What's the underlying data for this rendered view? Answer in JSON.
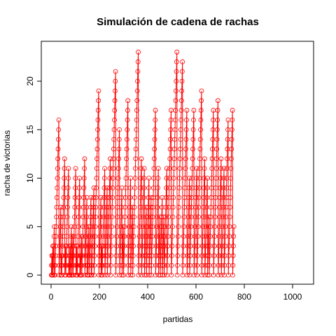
{
  "chart_data": {
    "type": "line",
    "title": "Simulación de cadena de rachas",
    "xlabel": "partidas",
    "ylabel": "racha de victorias",
    "xlim": [
      0,
      1050
    ],
    "ylim": [
      0,
      23
    ],
    "x_ticks": [
      0,
      200,
      400,
      600,
      800,
      1000
    ],
    "y_ticks": [
      0,
      5,
      10,
      15,
      20
    ],
    "grid": false,
    "legend": "none",
    "series_color": "#ff0000",
    "marker": "open-circle",
    "x_start": 1,
    "values": [
      0,
      1,
      2,
      0,
      1,
      2,
      3,
      0,
      1,
      2,
      3,
      4,
      5,
      0,
      1,
      0,
      1,
      2,
      3,
      4,
      5,
      6,
      7,
      8,
      9,
      10,
      11,
      12,
      13,
      14,
      15,
      16,
      0,
      1,
      2,
      3,
      4,
      5,
      6,
      7,
      0,
      1,
      2,
      0,
      1,
      2,
      3,
      4,
      5,
      6,
      7,
      8,
      9,
      10,
      11,
      12,
      0,
      1,
      2,
      3,
      0,
      1,
      2,
      3,
      4,
      5,
      6,
      7,
      8,
      9,
      10,
      11,
      0,
      1,
      0,
      1,
      2,
      3,
      0,
      1,
      2,
      3,
      4,
      5,
      0,
      0,
      1,
      2,
      3,
      4,
      0,
      1,
      2,
      3,
      4,
      5,
      6,
      7,
      8,
      9,
      10,
      11,
      0,
      1,
      2,
      3,
      0,
      0,
      1,
      2,
      3,
      4,
      5,
      6,
      7,
      8,
      9,
      10,
      0,
      1,
      2,
      0,
      1,
      2,
      3,
      4,
      0,
      1,
      2,
      3,
      4,
      5,
      6,
      7,
      8,
      9,
      10,
      11,
      12,
      0,
      1,
      2,
      3,
      4,
      5,
      6,
      7,
      8,
      0,
      1,
      0,
      1,
      2,
      3,
      4,
      5,
      0,
      1,
      2,
      3,
      4,
      5,
      6,
      7,
      8,
      0,
      1,
      0,
      1,
      2,
      3,
      4,
      5,
      6,
      7,
      8,
      9,
      0,
      1,
      2,
      3,
      4,
      5,
      6,
      7,
      8,
      9,
      10,
      11,
      12,
      13,
      14,
      15,
      16,
      17,
      18,
      19,
      0,
      1,
      2,
      3,
      4,
      5,
      6,
      7,
      8,
      0,
      1,
      2,
      3,
      0,
      1,
      2,
      3,
      4,
      5,
      6,
      7,
      8,
      9,
      10,
      11,
      0,
      1,
      2,
      3,
      4,
      5,
      6,
      7,
      8,
      9,
      0,
      1,
      2,
      3,
      4,
      5,
      6,
      7,
      8,
      9,
      10,
      11,
      12,
      0,
      1,
      2,
      3,
      4,
      5,
      6,
      7,
      8,
      9,
      10,
      11,
      12,
      13,
      14,
      15,
      16,
      17,
      18,
      19,
      20,
      21,
      0,
      1,
      2,
      3,
      4,
      5,
      6,
      7,
      8,
      9,
      10,
      11,
      12,
      13,
      14,
      15,
      0,
      1,
      2,
      3,
      4,
      5,
      6,
      7,
      8,
      9,
      0,
      1,
      2,
      3,
      4,
      5,
      0,
      1,
      2,
      3,
      4,
      5,
      6,
      7,
      8,
      9,
      10,
      11,
      12,
      13,
      14,
      15,
      16,
      17,
      18,
      0,
      1,
      2,
      3,
      4,
      5,
      6,
      7,
      8,
      9,
      10,
      0,
      1,
      2,
      3,
      4,
      5,
      6,
      7,
      0,
      1,
      2,
      3,
      4,
      5,
      6,
      7,
      8,
      9,
      10,
      11,
      12,
      13,
      14,
      15,
      16,
      17,
      18,
      19,
      20,
      21,
      22,
      23,
      0,
      1,
      2,
      3,
      4,
      5,
      6,
      7,
      8,
      9,
      10,
      11,
      12,
      0,
      1,
      2,
      3,
      4,
      5,
      6,
      7,
      8,
      9,
      10,
      11,
      0,
      1,
      2,
      3,
      4,
      5,
      6,
      7,
      0,
      1,
      2,
      3,
      4,
      5,
      6,
      7,
      8,
      9,
      10,
      0,
      1,
      2,
      3,
      4,
      5,
      6,
      7,
      8,
      0,
      1,
      2,
      3,
      4,
      5,
      6,
      7,
      8,
      9,
      10,
      11,
      12,
      13,
      14,
      15,
      16,
      17,
      0,
      1,
      2,
      3,
      4,
      5,
      6,
      7,
      8,
      9,
      10,
      11,
      0,
      1,
      2,
      3,
      4,
      5,
      6,
      0,
      1,
      2,
      3,
      4,
      5,
      6,
      7,
      8,
      0,
      1,
      2,
      3,
      4,
      5,
      6,
      0,
      1,
      2,
      3,
      4,
      5,
      6,
      7,
      8,
      9,
      10,
      11,
      0,
      1,
      2,
      3,
      4,
      5,
      6,
      7,
      8,
      9,
      10,
      11,
      12,
      13,
      14,
      15,
      16,
      17,
      0,
      1,
      2,
      3,
      4,
      5,
      6,
      7,
      8,
      9,
      10,
      11,
      12,
      13,
      14,
      15,
      16,
      17,
      18,
      19,
      20,
      21,
      22,
      23,
      0,
      1,
      2,
      3,
      4,
      5,
      6,
      7,
      8,
      9,
      10,
      11,
      12,
      13,
      14,
      15,
      16,
      17,
      18,
      19,
      20,
      21,
      22,
      0,
      1,
      2,
      3,
      4,
      5,
      6,
      7,
      8,
      9,
      10,
      11,
      12,
      13,
      14,
      15,
      16,
      17,
      0,
      1,
      2,
      3,
      4,
      5,
      6,
      7,
      8,
      9,
      10,
      0,
      1,
      2,
      3,
      4,
      5,
      6,
      7,
      8,
      9,
      10,
      11,
      12,
      13,
      14,
      15,
      16,
      17,
      0,
      1,
      2,
      3,
      4,
      5,
      6,
      7,
      8,
      9,
      10,
      11,
      0,
      1,
      2,
      3,
      4,
      5,
      6,
      7,
      8,
      9,
      10,
      11,
      12,
      13,
      14,
      15,
      16,
      17,
      18,
      19,
      0,
      1,
      2,
      3,
      4,
      5,
      6,
      7,
      8,
      9,
      10,
      11,
      12,
      0,
      1,
      2,
      3,
      4,
      5,
      6,
      7,
      8,
      9,
      10,
      0,
      1,
      2,
      3,
      4,
      5,
      6,
      0,
      1,
      2,
      3,
      4,
      5,
      6,
      7,
      8,
      9,
      10,
      11,
      12,
      13,
      14,
      15,
      16,
      17,
      0,
      1,
      2,
      3,
      4,
      5,
      6,
      7,
      8,
      9,
      10,
      11,
      12,
      13,
      14,
      15,
      16,
      17,
      18,
      0,
      1,
      2,
      3,
      4,
      5,
      6,
      7,
      8,
      9,
      10,
      11,
      12,
      0,
      1,
      2,
      3,
      4,
      5,
      6,
      7,
      8,
      9,
      10,
      11,
      0,
      1,
      2,
      3,
      4,
      5,
      6,
      7,
      8,
      9,
      10,
      11,
      12,
      13,
      14,
      15,
      16,
      0,
      1,
      2,
      3,
      4,
      5,
      6,
      7,
      8,
      9,
      10,
      11,
      12,
      13,
      14,
      15,
      16,
      17,
      0,
      1,
      2,
      3,
      4,
      5
    ]
  }
}
